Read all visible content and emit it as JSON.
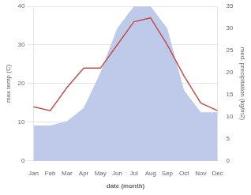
{
  "chart_data": {
    "type": "line",
    "categories": [
      "Jan",
      "Feb",
      "Mar",
      "Apr",
      "May",
      "Jun",
      "Jul",
      "Aug",
      "Sep",
      "Oct",
      "Nov",
      "Dec"
    ],
    "series": [
      {
        "type": "area",
        "axis": "y2",
        "color": "#bfc9ea",
        "values": [
          8,
          8,
          9,
          12,
          20,
          30,
          35,
          35,
          30,
          16,
          11,
          11
        ]
      },
      {
        "type": "line",
        "color": "#c0504d",
        "values": [
          14,
          13,
          19,
          24,
          24,
          30,
          36,
          37,
          30,
          22,
          15,
          13
        ]
      }
    ],
    "xlabel": "date (month)",
    "ylabel": "max temp (C)",
    "y2label": "med. precipitation (kg/m2)",
    "ylim": [
      0,
      40
    ],
    "yticks": [
      0,
      10,
      20,
      30,
      40
    ],
    "y2lim": [
      0,
      35
    ],
    "y2ticks": [
      0,
      5,
      10,
      15,
      20,
      25,
      30,
      35
    ],
    "grid": true
  }
}
